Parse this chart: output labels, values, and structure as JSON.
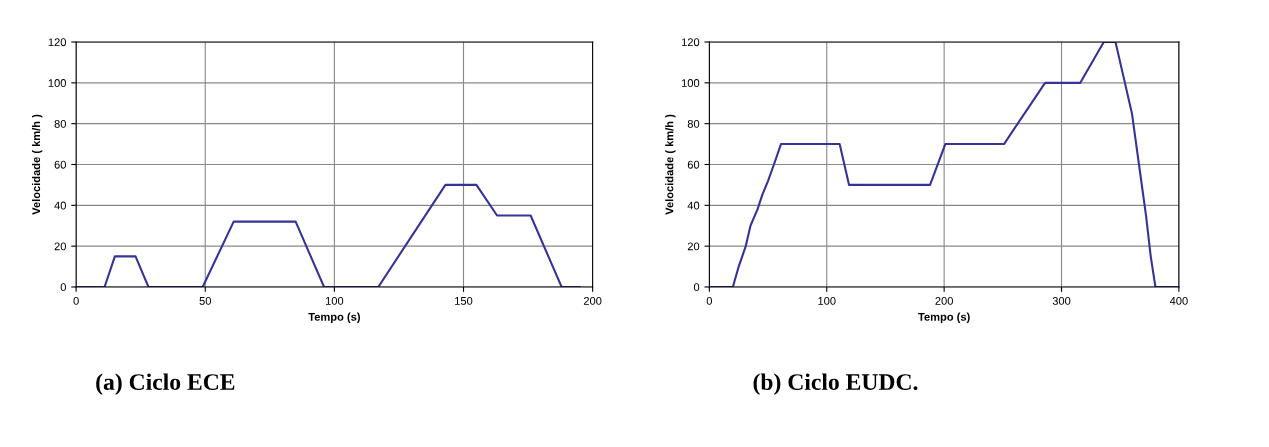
{
  "chart_data": [
    {
      "type": "line",
      "xlabel": "Tempo (s)",
      "ylabel": "Velocidade ( km/h )",
      "annotations": [
        "(a) Ciclo ECE"
      ],
      "xlim": [
        0,
        200
      ],
      "xticks": [
        0,
        50,
        100,
        150,
        200
      ],
      "ylim": [
        0,
        120
      ],
      "yticks": [
        0,
        20,
        40,
        60,
        80,
        100,
        120
      ],
      "grid": true,
      "marker": "none",
      "line_style": "solid",
      "series": [
        {
          "color": "#333399",
          "x": [
            0,
            11,
            15,
            23,
            28,
            49,
            61,
            85,
            96,
            117,
            143,
            155,
            163,
            176,
            188,
            195
          ],
          "values": [
            0,
            0,
            15,
            15,
            0,
            0,
            32,
            32,
            0,
            0,
            50,
            50,
            35,
            35,
            0,
            0
          ]
        }
      ]
    },
    {
      "type": "line",
      "xlabel": "Tempo (s)",
      "ylabel": "Velocidade ( km/h )",
      "annotations": [
        "(b) Ciclo EUDC."
      ],
      "xlim": [
        0,
        400
      ],
      "xticks": [
        0,
        100,
        200,
        300,
        400
      ],
      "ylim": [
        0,
        120
      ],
      "yticks": [
        0,
        20,
        40,
        60,
        80,
        100,
        120
      ],
      "grid": true,
      "marker": "none",
      "line_style": "solid",
      "series": [
        {
          "color": "#333399",
          "x": [
            0,
            20,
            25,
            28,
            31,
            35,
            41,
            45,
            50,
            55,
            61,
            111,
            119,
            188,
            201,
            251,
            286,
            316,
            336,
            346,
            352,
            360,
            366,
            372,
            376,
            380,
            400
          ],
          "values": [
            0,
            0,
            10,
            15,
            20,
            30,
            38,
            45,
            52,
            60,
            70,
            70,
            50,
            50,
            70,
            70,
            100,
            100,
            120,
            120,
            105,
            85,
            60,
            35,
            15,
            0,
            0
          ]
        }
      ]
    }
  ]
}
